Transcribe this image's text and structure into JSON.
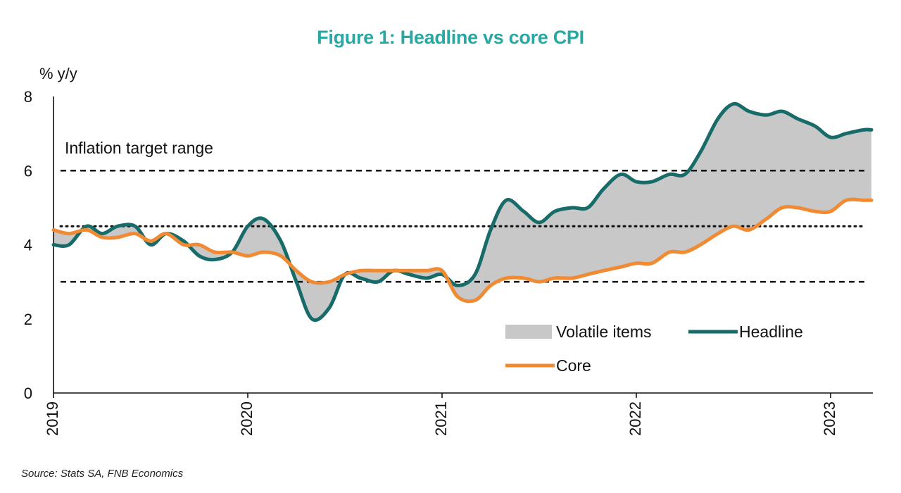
{
  "chart_data": {
    "type": "line",
    "title": "Figure 1: Headline vs core CPI",
    "ylabel": "% y/y",
    "ylim": [
      0,
      8
    ],
    "yticks": [
      0,
      2,
      4,
      6,
      8
    ],
    "xlim": [
      2019.0,
      2023.25
    ],
    "xticks": [
      2019,
      2020,
      2021,
      2022,
      2023
    ],
    "xtick_labels": [
      "2019",
      "2020",
      "2021",
      "2022",
      "2023"
    ],
    "reference_lines": [
      {
        "name": "target-upper",
        "value": 6,
        "style": "dashed"
      },
      {
        "name": "target-mid",
        "value": 4.5,
        "style": "dotted"
      },
      {
        "name": "target-lower",
        "value": 3,
        "style": "dashed"
      }
    ],
    "annotation": "Inflation target range",
    "shaded_area_label": "Volatile items",
    "series": [
      {
        "name": "Headline",
        "color": "#176b68",
        "points": [
          [
            2019.0,
            4.0
          ],
          [
            2019.08,
            4.0
          ],
          [
            2019.17,
            4.5
          ],
          [
            2019.25,
            4.3
          ],
          [
            2019.33,
            4.5
          ],
          [
            2019.42,
            4.5
          ],
          [
            2019.5,
            4.0
          ],
          [
            2019.58,
            4.3
          ],
          [
            2019.67,
            4.1
          ],
          [
            2019.75,
            3.7
          ],
          [
            2019.83,
            3.6
          ],
          [
            2019.92,
            3.8
          ],
          [
            2020.0,
            4.5
          ],
          [
            2020.08,
            4.7
          ],
          [
            2020.17,
            4.1
          ],
          [
            2020.25,
            3.0
          ],
          [
            2020.33,
            2.0
          ],
          [
            2020.42,
            2.3
          ],
          [
            2020.5,
            3.2
          ],
          [
            2020.58,
            3.1
          ],
          [
            2020.67,
            3.0
          ],
          [
            2020.75,
            3.3
          ],
          [
            2020.83,
            3.2
          ],
          [
            2020.92,
            3.1
          ],
          [
            2021.0,
            3.2
          ],
          [
            2021.08,
            2.9
          ],
          [
            2021.17,
            3.2
          ],
          [
            2021.25,
            4.4
          ],
          [
            2021.33,
            5.2
          ],
          [
            2021.42,
            4.9
          ],
          [
            2021.5,
            4.6
          ],
          [
            2021.58,
            4.9
          ],
          [
            2021.67,
            5.0
          ],
          [
            2021.75,
            5.0
          ],
          [
            2021.83,
            5.5
          ],
          [
            2021.92,
            5.9
          ],
          [
            2022.0,
            5.7
          ],
          [
            2022.08,
            5.7
          ],
          [
            2022.17,
            5.9
          ],
          [
            2022.25,
            5.9
          ],
          [
            2022.33,
            6.5
          ],
          [
            2022.42,
            7.4
          ],
          [
            2022.5,
            7.8
          ],
          [
            2022.58,
            7.6
          ],
          [
            2022.67,
            7.5
          ],
          [
            2022.75,
            7.6
          ],
          [
            2022.83,
            7.4
          ],
          [
            2022.92,
            7.2
          ],
          [
            2023.0,
            6.9
          ],
          [
            2023.08,
            7.0
          ],
          [
            2023.17,
            7.1
          ],
          [
            2023.21,
            7.1
          ]
        ]
      },
      {
        "name": "Core",
        "color": "#f08a33",
        "points": [
          [
            2019.0,
            4.4
          ],
          [
            2019.08,
            4.3
          ],
          [
            2019.17,
            4.4
          ],
          [
            2019.25,
            4.2
          ],
          [
            2019.33,
            4.2
          ],
          [
            2019.42,
            4.3
          ],
          [
            2019.5,
            4.1
          ],
          [
            2019.58,
            4.3
          ],
          [
            2019.67,
            4.0
          ],
          [
            2019.75,
            4.0
          ],
          [
            2019.83,
            3.8
          ],
          [
            2019.92,
            3.8
          ],
          [
            2020.0,
            3.7
          ],
          [
            2020.08,
            3.8
          ],
          [
            2020.17,
            3.7
          ],
          [
            2020.25,
            3.3
          ],
          [
            2020.33,
            3.0
          ],
          [
            2020.42,
            3.0
          ],
          [
            2020.5,
            3.2
          ],
          [
            2020.58,
            3.3
          ],
          [
            2020.67,
            3.3
          ],
          [
            2020.75,
            3.3
          ],
          [
            2020.83,
            3.3
          ],
          [
            2020.92,
            3.3
          ],
          [
            2021.0,
            3.3
          ],
          [
            2021.08,
            2.6
          ],
          [
            2021.17,
            2.5
          ],
          [
            2021.25,
            2.9
          ],
          [
            2021.33,
            3.1
          ],
          [
            2021.42,
            3.1
          ],
          [
            2021.5,
            3.0
          ],
          [
            2021.58,
            3.1
          ],
          [
            2021.67,
            3.1
          ],
          [
            2021.75,
            3.2
          ],
          [
            2021.83,
            3.3
          ],
          [
            2021.92,
            3.4
          ],
          [
            2022.0,
            3.5
          ],
          [
            2022.08,
            3.5
          ],
          [
            2022.17,
            3.8
          ],
          [
            2022.25,
            3.8
          ],
          [
            2022.33,
            4.0
          ],
          [
            2022.42,
            4.3
          ],
          [
            2022.5,
            4.5
          ],
          [
            2022.58,
            4.4
          ],
          [
            2022.67,
            4.7
          ],
          [
            2022.75,
            5.0
          ],
          [
            2022.83,
            5.0
          ],
          [
            2022.92,
            4.9
          ],
          [
            2023.0,
            4.9
          ],
          [
            2023.08,
            5.2
          ],
          [
            2023.17,
            5.2
          ],
          [
            2023.21,
            5.2
          ]
        ]
      }
    ],
    "legend": [
      {
        "label": "Volatile items",
        "kind": "area",
        "color": "#c8c8c8"
      },
      {
        "label": "Headline",
        "kind": "line",
        "color": "#176b68"
      },
      {
        "label": "Core",
        "kind": "line",
        "color": "#f08a33"
      }
    ],
    "legend_position": "bottom-right"
  },
  "source": "Source: Stats SA, FNB Economics"
}
